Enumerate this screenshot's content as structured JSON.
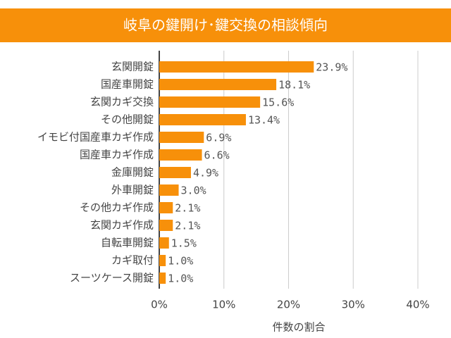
{
  "chart_data": {
    "type": "bar",
    "orientation": "horizontal",
    "title": "岐阜の鍵開け･鍵交換の相談傾向",
    "xlabel": "件数の割合",
    "categories": [
      "玄関開錠",
      "国産車開錠",
      "玄関カギ交換",
      "その他開錠",
      "イモビ付国産車カギ作成",
      "国産車カギ作成",
      "金庫開錠",
      "外車開錠",
      "その他カギ作成",
      "玄関カギ作成",
      "自転車開錠",
      "カギ取付",
      "スーツケース開錠"
    ],
    "values": [
      23.9,
      18.1,
      15.6,
      13.4,
      6.9,
      6.6,
      4.9,
      3.0,
      2.1,
      2.1,
      1.5,
      1.0,
      1.0
    ],
    "value_labels": [
      "23.9%",
      "18.1%",
      "15.6%",
      "13.4%",
      "6.9%",
      "6.6%",
      "4.9%",
      "3.0%",
      "2.1%",
      "2.1%",
      "1.5%",
      "1.0%",
      "1.0%"
    ],
    "color": "#f7900a",
    "xlim": [
      0,
      40
    ],
    "xticks": [
      {
        "value": 0,
        "label": "0%"
      },
      {
        "value": 10,
        "label": "10%"
      },
      {
        "value": 20,
        "label": "20%"
      },
      {
        "value": 30,
        "label": "30%"
      },
      {
        "value": 40,
        "label": "40%"
      }
    ],
    "grid": true
  }
}
